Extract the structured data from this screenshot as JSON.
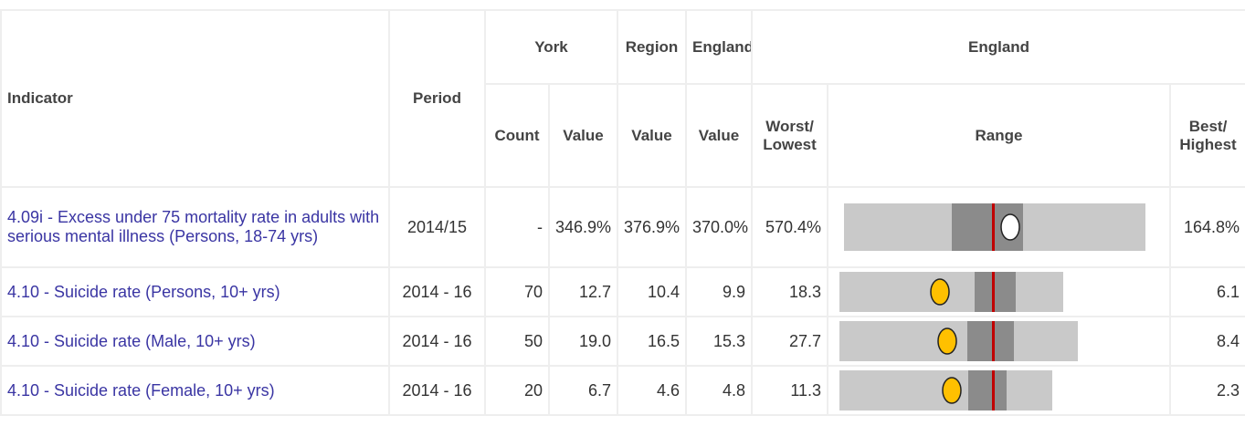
{
  "table": {
    "header": {
      "indicator": "Indicator",
      "period": "Period",
      "york": "York",
      "region": "Region",
      "england": "England",
      "england_group": "England",
      "count": "Count",
      "york_value": "Value",
      "region_value": "Value",
      "england_value": "Value",
      "worst": "Worst/ Lowest",
      "range": "Range",
      "best": "Best/ Highest"
    },
    "rows": [
      [
        "4.09i - Excess under 75 mortality rate in adults with serious mental illness (Persons, 18-74 yrs)",
        "2014/15",
        "-",
        "346.9%",
        "376.9%",
        "370.0%",
        "570.4%",
        "164.8%"
      ],
      [
        "4.10 - Suicide rate (Persons, 10+ yrs)",
        "2014 - 16",
        "70",
        "12.7",
        "10.4",
        "9.9",
        "18.3",
        "6.1"
      ],
      [
        "4.10 - Suicide rate (Male, 10+ yrs)",
        "2014 - 16",
        "50",
        "19.0",
        "16.5",
        "15.3",
        "27.7",
        "8.4"
      ],
      [
        "4.10 - Suicide rate (Female, 10+ yrs)",
        "2014 - 16",
        "20",
        "6.7",
        "4.6",
        "4.8",
        "11.3",
        "2.3"
      ]
    ]
  }
}
